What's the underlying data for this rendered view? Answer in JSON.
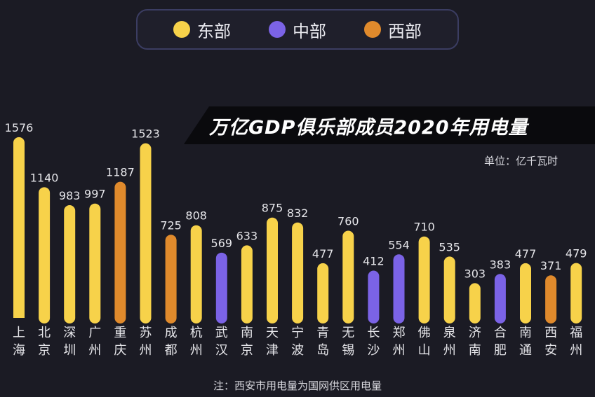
{
  "legend": [
    {
      "label": "东部",
      "color": "#f7d24a"
    },
    {
      "label": "中部",
      "color": "#7b63e6"
    },
    {
      "label": "西部",
      "color": "#e08a2c"
    }
  ],
  "title_text": "万亿GDP俱乐部成员2020年用电量",
  "unit_text": "单位：亿千瓦时",
  "note_text": "注：西安市用电量为国网供区用电量",
  "colors": {
    "background": "#1b1b24",
    "east": "#f7d24a",
    "central": "#7b63e6",
    "west": "#e08a2c"
  },
  "chart_data": {
    "type": "bar",
    "title": "万亿GDP俱乐部成员2020年用电量",
    "ylabel": "单位：亿千瓦时",
    "ylim": [
      0,
      1600
    ],
    "grid": false,
    "legend_position": "top-center",
    "categories": [
      "上海",
      "北京",
      "深圳",
      "广州",
      "重庆",
      "苏州",
      "成都",
      "杭州",
      "武汉",
      "南京",
      "天津",
      "宁波",
      "青岛",
      "无锡",
      "长沙",
      "郑州",
      "佛山",
      "泉州",
      "济南",
      "合肥",
      "南通",
      "西安",
      "福州"
    ],
    "values": [
      1576,
      1140,
      983,
      997,
      1187,
      1523,
      725,
      808,
      569,
      633,
      875,
      832,
      477,
      760,
      412,
      554,
      710,
      535,
      303,
      383,
      477,
      371,
      479
    ],
    "regions": [
      "东部",
      "东部",
      "东部",
      "东部",
      "西部",
      "东部",
      "西部",
      "东部",
      "中部",
      "东部",
      "东部",
      "东部",
      "东部",
      "东部",
      "中部",
      "中部",
      "东部",
      "东部",
      "东部",
      "中部",
      "东部",
      "西部",
      "东部"
    ]
  }
}
